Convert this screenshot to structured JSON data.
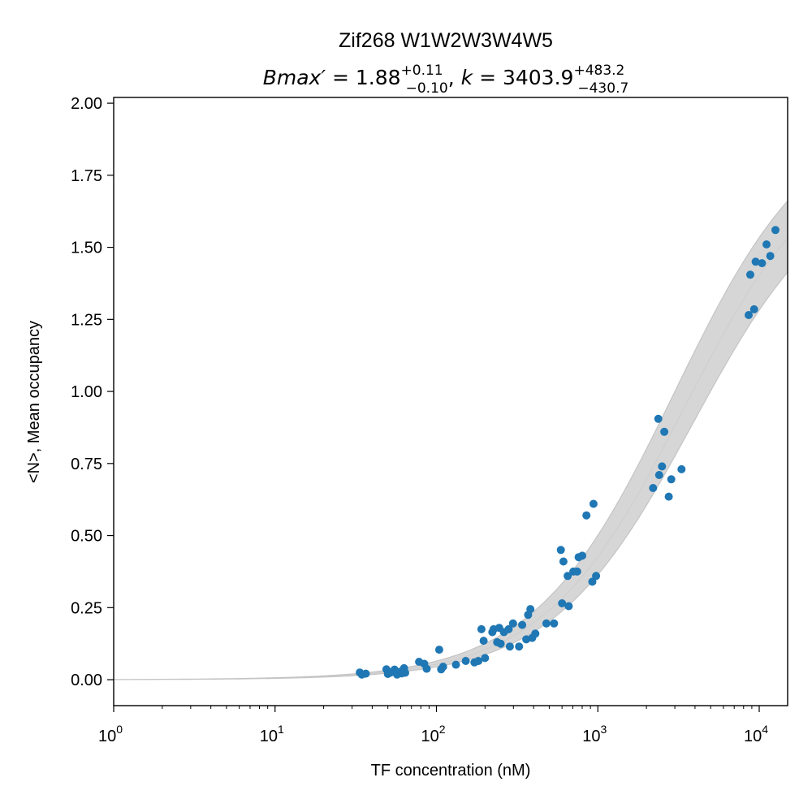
{
  "chart_data": {
    "type": "scatter",
    "title": "Zif268 W1W2W3W4W5",
    "subtitle": {
      "bmax_label": "Bmax′",
      "bmax_value": "1.88",
      "bmax_plus": "+0.11",
      "bmax_minus": "−0.10",
      "k_label": "k",
      "k_value": "3403.9",
      "k_plus": "+483.2",
      "k_minus": "−430.7"
    },
    "xlabel": "TF concentration (nM)",
    "ylabel": "<N>, Mean occupancy",
    "xscale": "log",
    "xlim": [
      1,
      15000
    ],
    "ylim": [
      -0.09,
      2.02
    ],
    "x_ticks": [
      {
        "value": 1,
        "base": "10",
        "exp": "0"
      },
      {
        "value": 10,
        "base": "10",
        "exp": "1"
      },
      {
        "value": 100,
        "base": "10",
        "exp": "2"
      },
      {
        "value": 1000,
        "base": "10",
        "exp": "3"
      },
      {
        "value": 10000,
        "base": "10",
        "exp": "4"
      }
    ],
    "y_ticks": [
      {
        "value": 0.0,
        "label": "0.00"
      },
      {
        "value": 0.25,
        "label": "0.25"
      },
      {
        "value": 0.5,
        "label": "0.50"
      },
      {
        "value": 0.75,
        "label": "0.75"
      },
      {
        "value": 1.0,
        "label": "1.00"
      },
      {
        "value": 1.25,
        "label": "1.25"
      },
      {
        "value": 1.5,
        "label": "1.50"
      },
      {
        "value": 1.75,
        "label": "1.75"
      },
      {
        "value": 2.0,
        "label": "2.00"
      }
    ],
    "grid": false,
    "fit": {
      "model": "Bmax*x/(k+x)",
      "bmax": 1.88,
      "bmax_plus": 0.11,
      "bmax_minus": 0.1,
      "k": 3403.9,
      "k_plus": 483.2,
      "k_minus": 430.7
    },
    "colors": {
      "points": "#1f77b4",
      "band": "#d6d6d6",
      "band_edge": "#c4c4c4"
    },
    "points": [
      {
        "x": 33.5,
        "y": 0.025
      },
      {
        "x": 34.5,
        "y": 0.018
      },
      {
        "x": 36.5,
        "y": 0.021
      },
      {
        "x": 49,
        "y": 0.036
      },
      {
        "x": 50,
        "y": 0.02
      },
      {
        "x": 52,
        "y": 0.025
      },
      {
        "x": 55,
        "y": 0.035
      },
      {
        "x": 57,
        "y": 0.018
      },
      {
        "x": 60,
        "y": 0.028
      },
      {
        "x": 61,
        "y": 0.022
      },
      {
        "x": 63,
        "y": 0.04
      },
      {
        "x": 64,
        "y": 0.024
      },
      {
        "x": 78,
        "y": 0.062
      },
      {
        "x": 84,
        "y": 0.055
      },
      {
        "x": 87,
        "y": 0.038
      },
      {
        "x": 104,
        "y": 0.104
      },
      {
        "x": 107,
        "y": 0.036
      },
      {
        "x": 110,
        "y": 0.045
      },
      {
        "x": 132,
        "y": 0.052
      },
      {
        "x": 152,
        "y": 0.065
      },
      {
        "x": 172,
        "y": 0.06
      },
      {
        "x": 182,
        "y": 0.065
      },
      {
        "x": 190,
        "y": 0.175
      },
      {
        "x": 196,
        "y": 0.135
      },
      {
        "x": 200,
        "y": 0.075
      },
      {
        "x": 222,
        "y": 0.165
      },
      {
        "x": 226,
        "y": 0.175
      },
      {
        "x": 238,
        "y": 0.13
      },
      {
        "x": 245,
        "y": 0.18
      },
      {
        "x": 250,
        "y": 0.125
      },
      {
        "x": 262,
        "y": 0.165
      },
      {
        "x": 280,
        "y": 0.175
      },
      {
        "x": 285,
        "y": 0.115
      },
      {
        "x": 298,
        "y": 0.195
      },
      {
        "x": 325,
        "y": 0.115
      },
      {
        "x": 340,
        "y": 0.19
      },
      {
        "x": 360,
        "y": 0.14
      },
      {
        "x": 370,
        "y": 0.225
      },
      {
        "x": 382,
        "y": 0.245
      },
      {
        "x": 392,
        "y": 0.145
      },
      {
        "x": 410,
        "y": 0.16
      },
      {
        "x": 480,
        "y": 0.195
      },
      {
        "x": 535,
        "y": 0.195
      },
      {
        "x": 590,
        "y": 0.45
      },
      {
        "x": 600,
        "y": 0.265
      },
      {
        "x": 612,
        "y": 0.41
      },
      {
        "x": 650,
        "y": 0.36
      },
      {
        "x": 660,
        "y": 0.255
      },
      {
        "x": 705,
        "y": 0.375
      },
      {
        "x": 745,
        "y": 0.375
      },
      {
        "x": 760,
        "y": 0.425
      },
      {
        "x": 800,
        "y": 0.43
      },
      {
        "x": 850,
        "y": 0.57
      },
      {
        "x": 925,
        "y": 0.34
      },
      {
        "x": 940,
        "y": 0.61
      },
      {
        "x": 975,
        "y": 0.36
      },
      {
        "x": 2200,
        "y": 0.665
      },
      {
        "x": 2370,
        "y": 0.905
      },
      {
        "x": 2400,
        "y": 0.71
      },
      {
        "x": 2500,
        "y": 0.74
      },
      {
        "x": 2580,
        "y": 0.86
      },
      {
        "x": 2750,
        "y": 0.635
      },
      {
        "x": 2850,
        "y": 0.695
      },
      {
        "x": 3300,
        "y": 0.73
      },
      {
        "x": 8600,
        "y": 1.265
      },
      {
        "x": 8800,
        "y": 1.405
      },
      {
        "x": 9300,
        "y": 1.285
      },
      {
        "x": 9500,
        "y": 1.45
      },
      {
        "x": 10400,
        "y": 1.445
      },
      {
        "x": 11100,
        "y": 1.51
      },
      {
        "x": 11700,
        "y": 1.47
      },
      {
        "x": 12600,
        "y": 1.56
      }
    ]
  }
}
